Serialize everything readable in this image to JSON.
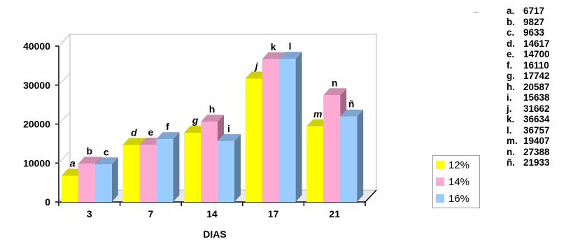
{
  "chart_data": {
    "type": "bar",
    "categories": [
      "3",
      "7",
      "14",
      "17",
      "21"
    ],
    "xlabel": "DIAS",
    "ylabel": "",
    "ylim": [
      0,
      40000
    ],
    "yticks": [
      "0",
      "10000",
      "20000",
      "30000",
      "40000"
    ],
    "series": [
      {
        "name": "12%",
        "color": "#ffff00",
        "values": [
          6717,
          14617,
          17742,
          31662,
          19407
        ],
        "labels": [
          "a",
          "d",
          "g",
          "j",
          "m"
        ]
      },
      {
        "name": "14%",
        "color": "#ffaad5",
        "values": [
          9827,
          14700,
          20587,
          36634,
          27388
        ],
        "labels": [
          "b",
          "e",
          "h",
          "k",
          "n"
        ]
      },
      {
        "name": "16%",
        "color": "#99ccff",
        "values": [
          9633,
          16110,
          15638,
          36757,
          21933
        ],
        "labels": [
          "c",
          "f",
          "i",
          "l",
          "ñ"
        ]
      }
    ],
    "legend_position": "right",
    "value_list": [
      {
        "key": "a.",
        "value": "6717"
      },
      {
        "key": "b.",
        "value": "9827"
      },
      {
        "key": "c.",
        "value": "9633"
      },
      {
        "key": "d.",
        "value": "14617"
      },
      {
        "key": "e.",
        "value": "14700"
      },
      {
        "key": "f.",
        "value": "16110"
      },
      {
        "key": "g.",
        "value": "17742"
      },
      {
        "key": "h.",
        "value": "20587"
      },
      {
        "key": "i.",
        "value": "15638"
      },
      {
        "key": "j.",
        "value": "31662"
      },
      {
        "key": "k.",
        "value": "36634"
      },
      {
        "key": "l.",
        "value": "36757"
      },
      {
        "key": "m.",
        "value": "19407"
      },
      {
        "key": "n.",
        "value": "27388"
      },
      {
        "key": "ñ.",
        "value": "21933"
      }
    ]
  }
}
